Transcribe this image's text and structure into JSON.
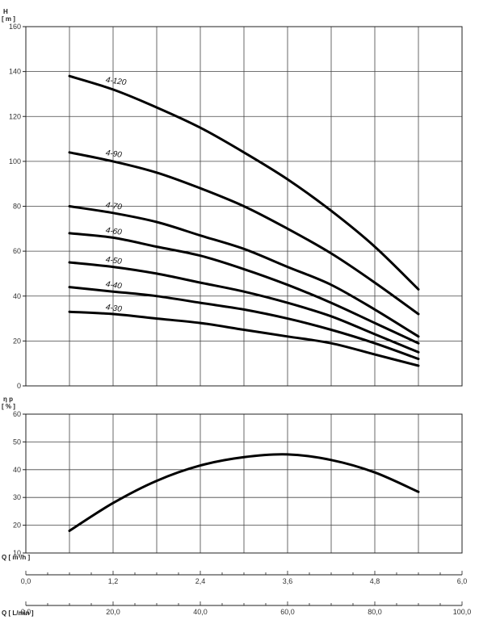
{
  "chart_data": [
    {
      "type": "line",
      "ylabel": "H",
      "yunit": "[ m ]",
      "ylim": [
        0,
        160
      ],
      "yticks": [
        0,
        20,
        40,
        60,
        80,
        100,
        120,
        140,
        160
      ],
      "xlim": [
        0,
        6
      ],
      "grid": true,
      "series": [
        {
          "name": "4-120",
          "x": [
            0.6,
            1.2,
            1.8,
            2.4,
            3.0,
            3.6,
            4.2,
            4.8,
            5.4
          ],
          "y": [
            138,
            132,
            124,
            115,
            104,
            92,
            78,
            62,
            43
          ]
        },
        {
          "name": "4-90",
          "x": [
            0.6,
            1.2,
            1.8,
            2.4,
            3.0,
            3.6,
            4.2,
            4.8,
            5.4
          ],
          "y": [
            104,
            100,
            95,
            88,
            80,
            70,
            59,
            46,
            32
          ]
        },
        {
          "name": "4-70",
          "x": [
            0.6,
            1.2,
            1.8,
            2.4,
            3.0,
            3.6,
            4.2,
            4.8,
            5.4
          ],
          "y": [
            80,
            77,
            73,
            67,
            61,
            53,
            45,
            34,
            22
          ]
        },
        {
          "name": "4-60",
          "x": [
            0.6,
            1.2,
            1.8,
            2.4,
            3.0,
            3.6,
            4.2,
            4.8,
            5.4
          ],
          "y": [
            68,
            66,
            62,
            58,
            52,
            45,
            37,
            28,
            19
          ]
        },
        {
          "name": "4-50",
          "x": [
            0.6,
            1.2,
            1.8,
            2.4,
            3.0,
            3.6,
            4.2,
            4.8,
            5.4
          ],
          "y": [
            55,
            53,
            50,
            46,
            42,
            37,
            31,
            23,
            15
          ]
        },
        {
          "name": "4-40",
          "x": [
            0.6,
            1.2,
            1.8,
            2.4,
            3.0,
            3.6,
            4.2,
            4.8,
            5.4
          ],
          "y": [
            44,
            42,
            40,
            37,
            34,
            30,
            25,
            19,
            12
          ]
        },
        {
          "name": "4-30",
          "x": [
            0.6,
            1.2,
            1.8,
            2.4,
            3.0,
            3.6,
            4.2,
            4.8,
            5.4
          ],
          "y": [
            33,
            32,
            30,
            28,
            25,
            22,
            19,
            14,
            9
          ]
        }
      ]
    },
    {
      "type": "line",
      "ylabel": "η p",
      "yunit": "[ % ]",
      "ylim": [
        10,
        60
      ],
      "yticks": [
        10,
        20,
        30,
        40,
        50,
        60
      ],
      "xlim": [
        0,
        6
      ],
      "grid": true,
      "series": [
        {
          "name": "",
          "x": [
            0.6,
            1.2,
            1.8,
            2.4,
            3.0,
            3.6,
            4.2,
            4.8,
            5.4
          ],
          "y": [
            18,
            28,
            36,
            41.5,
            44.5,
            45.5,
            43.5,
            39,
            32
          ]
        }
      ]
    }
  ],
  "q_axes": [
    {
      "label": "Q [ m³/h ]",
      "ticks": [
        "0,0",
        "1,2",
        "2,4",
        "3,6",
        "4,8",
        "6,0"
      ],
      "values": [
        0,
        1.2,
        2.4,
        3.6,
        4.8,
        6.0
      ]
    },
    {
      "label": "Q [ L/min ]",
      "ticks": [
        "0,0",
        "20,0",
        "40,0",
        "60,0",
        "80,0",
        "100,0"
      ],
      "values": [
        0,
        20,
        40,
        60,
        80,
        100
      ]
    }
  ],
  "colors": {
    "curve": "#000000",
    "grid": "#444444",
    "axis": "#222222"
  }
}
